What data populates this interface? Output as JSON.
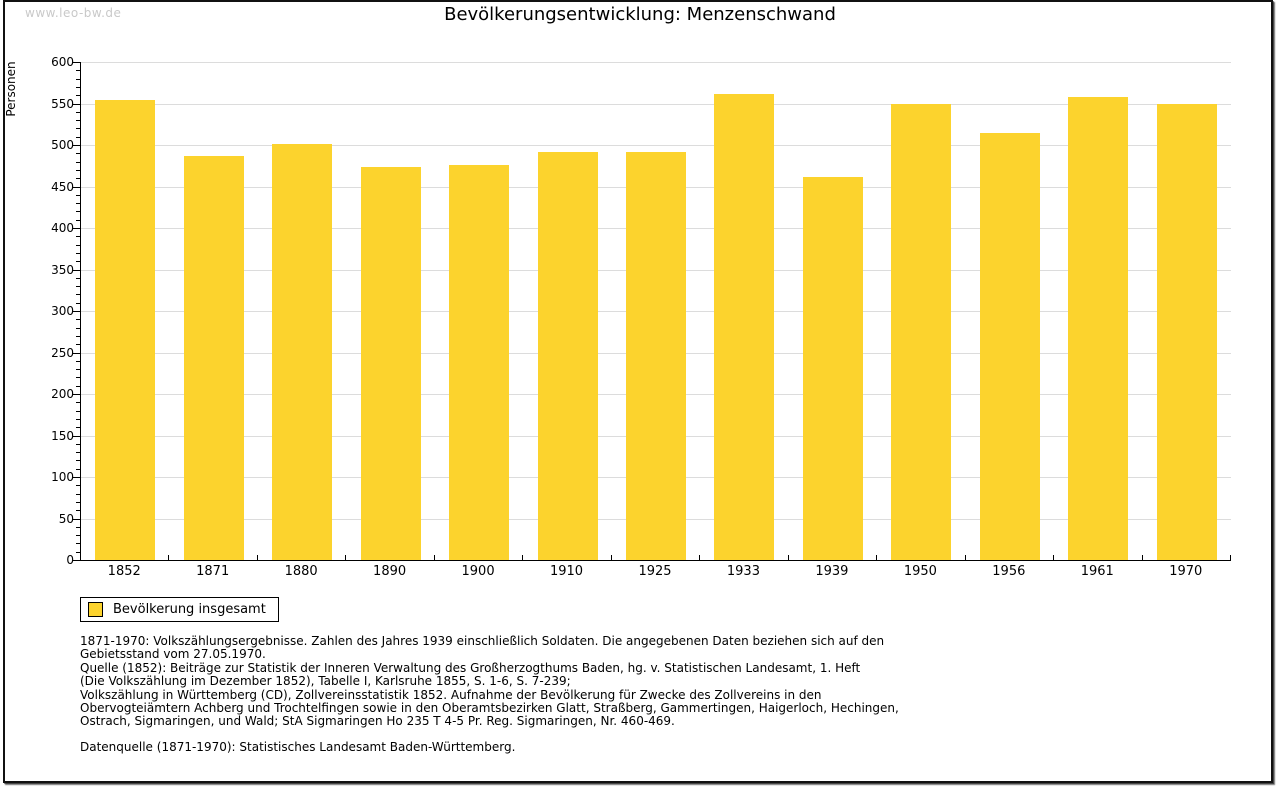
{
  "page": {
    "watermark": "www.leo-bw.de",
    "title": "Bevölkerungsentwicklung: Menzenschwand"
  },
  "chart_data": {
    "type": "bar",
    "title": "Bevölkerungsentwicklung: Menzenschwand",
    "xlabel": "",
    "ylabel": "Personen",
    "ylim": [
      0,
      600
    ],
    "yticks": [
      0,
      50,
      100,
      150,
      200,
      250,
      300,
      350,
      400,
      450,
      500,
      550,
      600
    ],
    "minor_tick_step": 10,
    "grid": true,
    "bar_color": "#FCD32D",
    "grid_color": "#dcdcdc",
    "categories": [
      "1852",
      "1871",
      "1880",
      "1890",
      "1900",
      "1910",
      "1925",
      "1933",
      "1939",
      "1950",
      "1956",
      "1961",
      "1970"
    ],
    "values": [
      554,
      487,
      501,
      474,
      476,
      491,
      492,
      561,
      461,
      550,
      515,
      558,
      550
    ],
    "legend": {
      "label": "Bevölkerung insgesamt",
      "position": "bottom-left"
    }
  },
  "footnotes": {
    "lines": [
      "1871-1970: Volkszählungsergebnisse. Zahlen des Jahres 1939 einschließlich Soldaten. Die angegebenen Daten beziehen sich auf den",
      "Gebietsstand vom 27.05.1970.",
      "Quelle (1852): Beiträge zur Statistik der Inneren Verwaltung des Großherzogthums Baden, hg. v. Statistischen Landesamt, 1. Heft",
      "(Die Volkszählung im Dezember 1852), Tabelle I, Karlsruhe 1855, S. 1-6, S. 7-239;",
      "Volkszählung in Württemberg (CD), Zollvereinsstatistik 1852. Aufnahme der Bevölkerung für Zwecke des Zollvereins in den",
      "Obervogteiämtern Achberg und Trochtelfingen sowie in den Oberamtsbezirken Glatt, Straßberg, Gammertingen, Haigerloch, Hechingen,",
      "Ostrach, Sigmaringen, und Wald; StA Sigmaringen Ho 235 T 4-5 Pr. Reg. Sigmaringen, Nr. 460-469."
    ],
    "datasource": "Datenquelle (1871-1970): Statistisches Landesamt Baden-Württemberg."
  }
}
